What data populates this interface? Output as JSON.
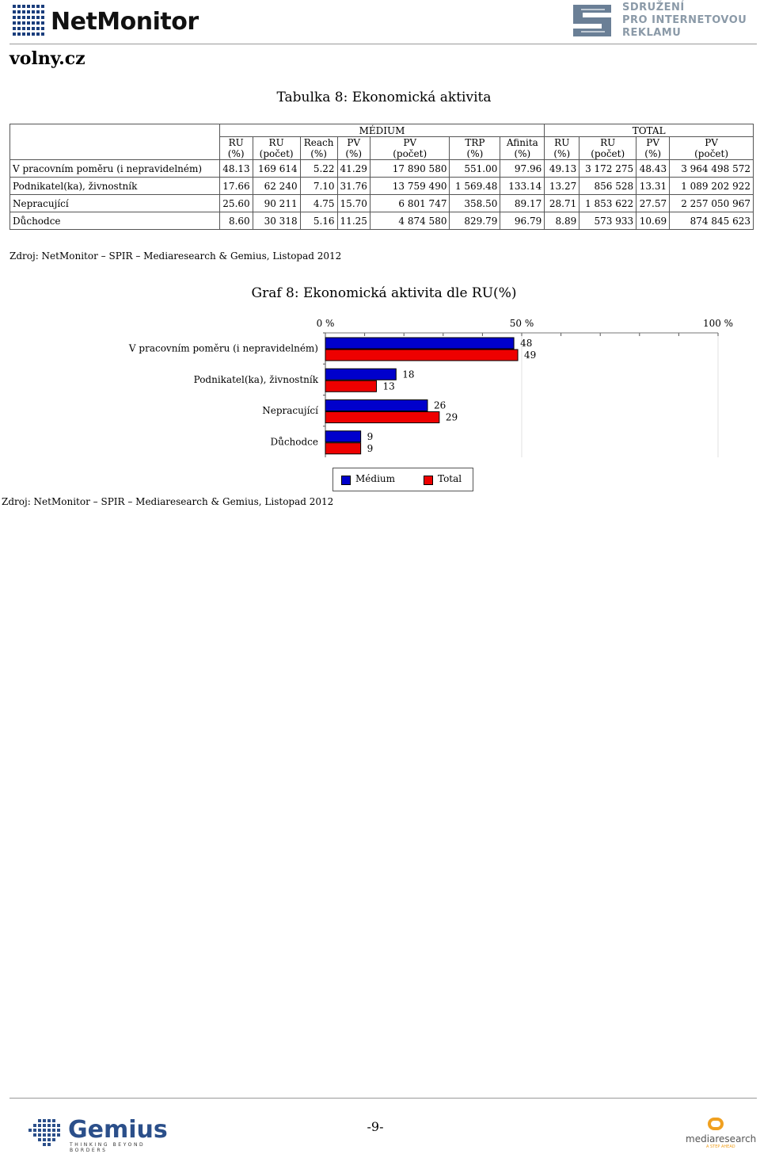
{
  "header": {
    "brand": "NetMonitor",
    "partner_lines": [
      "SDRUŽENÍ",
      "PRO INTERNETOVOU",
      "REKLAMU"
    ],
    "site": "volny.cz"
  },
  "table": {
    "title": "Tabulka 8: Ekonomická aktivita",
    "group_headers": [
      "MÉDIUM",
      "TOTAL"
    ],
    "columns": [
      [
        "RU",
        "(%)"
      ],
      [
        "RU",
        "(počet)"
      ],
      [
        "Reach",
        "(%)"
      ],
      [
        "PV",
        "(%)"
      ],
      [
        "PV",
        "(počet)"
      ],
      [
        "TRP",
        "(%)"
      ],
      [
        "Afinita",
        "(%)"
      ],
      [
        "RU",
        "(%)"
      ],
      [
        "RU",
        "(počet)"
      ],
      [
        "PV",
        "(%)"
      ],
      [
        "PV",
        "(počet)"
      ]
    ],
    "rows": [
      {
        "label": "V pracovním poměru (i nepravidelném)",
        "values": [
          "48.13",
          "169 614",
          "5.22",
          "41.29",
          "17 890 580",
          "551.00",
          "97.96",
          "49.13",
          "3 172 275",
          "48.43",
          "3 964 498 572"
        ]
      },
      {
        "label": "Podnikatel(ka), živnostník",
        "values": [
          "17.66",
          "62 240",
          "7.10",
          "31.76",
          "13 759 490",
          "1 569.48",
          "133.14",
          "13.27",
          "856 528",
          "13.31",
          "1 089 202 922"
        ]
      },
      {
        "label": "Nepracující",
        "values": [
          "25.60",
          "90 211",
          "4.75",
          "15.70",
          "6 801 747",
          "358.50",
          "89.17",
          "28.71",
          "1 853 622",
          "27.57",
          "2 257 050 967"
        ]
      },
      {
        "label": "Důchodce",
        "values": [
          "8.60",
          "30 318",
          "5.16",
          "11.25",
          "4 874 580",
          "829.79",
          "96.79",
          "8.89",
          "573 933",
          "10.69",
          "874 845 623"
        ]
      }
    ],
    "source": "Zdroj: NetMonitor – SPIR – Mediaresearch & Gemius, Listopad 2012"
  },
  "chart_data": {
    "type": "bar",
    "orientation": "horizontal",
    "title": "Graf 8: Ekonomická aktivita dle RU(%)",
    "categories": [
      "V pracovním poměru (i nepravidelném)",
      "Podnikatel(ka), živnostník",
      "Nepracující",
      "Důchodce"
    ],
    "series": [
      {
        "name": "Médium",
        "color": "#0000cc",
        "values": [
          48,
          18,
          26,
          9
        ]
      },
      {
        "name": "Total",
        "color": "#ee0000",
        "values": [
          49,
          13,
          29,
          9
        ]
      }
    ],
    "xlim": [
      0,
      100
    ],
    "x_ticks": [
      "0 %",
      "50 %",
      "100 %"
    ],
    "legend_position": "bottom",
    "source": "Zdroj: NetMonitor – SPIR – Mediaresearch & Gemius, Listopad 2012"
  },
  "footer": {
    "gemius_name": "Gemius",
    "gemius_tag": "THINKING BEYOND BORDERS",
    "page_number": "-9-",
    "mediaresearch_name": "mediaresearch",
    "mediaresearch_tag": "A STEP AHEAD"
  },
  "colors": {
    "medium": "#0000cc",
    "total": "#ee0000",
    "partner_text": "#8b9aa8",
    "gemius": "#2b4f8a",
    "mediaresearch": "#f0a020"
  }
}
